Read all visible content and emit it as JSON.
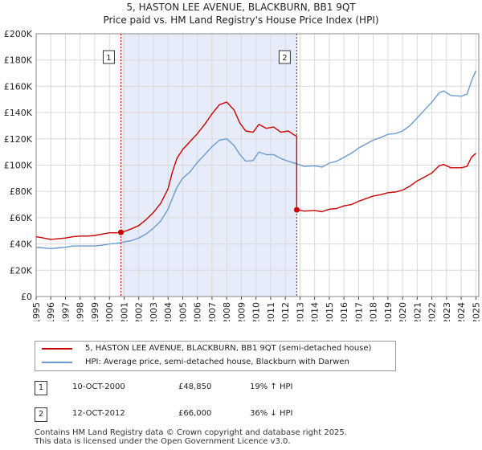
{
  "title_line1": "5, HASTON LEE AVENUE, BLACKBURN, BB1 9QT",
  "title_line2": "Price paid vs. HM Land Registry's House Price Index (HPI)",
  "colors": {
    "price": "#cc0000",
    "hpi": "#6b9bd2",
    "shade": "#e6ecf9",
    "grid": "#d9d9d9"
  },
  "chart_data": {
    "type": "line",
    "y_ticks": [
      "£0",
      "£20K",
      "£40K",
      "£60K",
      "£80K",
      "£100K",
      "£120K",
      "£140K",
      "£160K",
      "£180K",
      "£200K"
    ],
    "x_ticks": [
      "1995",
      "1996",
      "1997",
      "1998",
      "1999",
      "2000",
      "2001",
      "2002",
      "2003",
      "2004",
      "2005",
      "2006",
      "2007",
      "2008",
      "2009",
      "2010",
      "2011",
      "2012",
      "2013",
      "2014",
      "2015",
      "2016",
      "2017",
      "2018",
      "2019",
      "2020",
      "2021",
      "2022",
      "2023",
      "2024",
      "2025"
    ],
    "xlim": [
      1995,
      2025.2
    ],
    "ylim": [
      0,
      200000
    ],
    "shaded_range": [
      2000.78,
      2012.78
    ],
    "markers": [
      {
        "label": "1",
        "x": 2000.78,
        "y": 48850
      },
      {
        "label": "2",
        "x": 2012.78,
        "y": 66000
      }
    ],
    "series": [
      {
        "name": "5, HASTON LEE AVENUE, BLACKBURN, BB1 9QT (semi-detached house)",
        "color": "#cc0000",
        "points": [
          [
            1995.0,
            45500
          ],
          [
            1995.5,
            44500
          ],
          [
            1996.0,
            43500
          ],
          [
            1996.5,
            44000
          ],
          [
            1997.0,
            44500
          ],
          [
            1997.5,
            45500
          ],
          [
            1998.0,
            46000
          ],
          [
            1998.5,
            46000
          ],
          [
            1999.0,
            46500
          ],
          [
            1999.5,
            47500
          ],
          [
            2000.0,
            48500
          ],
          [
            2000.5,
            48500
          ],
          [
            2000.78,
            48850
          ],
          [
            2001.0,
            49500
          ],
          [
            2001.5,
            51500
          ],
          [
            2002.0,
            54000
          ],
          [
            2002.5,
            58500
          ],
          [
            2003.0,
            64000
          ],
          [
            2003.5,
            71000
          ],
          [
            2004.0,
            82000
          ],
          [
            2004.3,
            95000
          ],
          [
            2004.6,
            105000
          ],
          [
            2005.0,
            112000
          ],
          [
            2005.5,
            118000
          ],
          [
            2006.0,
            124000
          ],
          [
            2006.5,
            131000
          ],
          [
            2007.0,
            139000
          ],
          [
            2007.5,
            146000
          ],
          [
            2008.0,
            148000
          ],
          [
            2008.5,
            142000
          ],
          [
            2008.9,
            132000
          ],
          [
            2009.3,
            126000
          ],
          [
            2009.8,
            125000
          ],
          [
            2010.2,
            131000
          ],
          [
            2010.7,
            128000
          ],
          [
            2011.2,
            129000
          ],
          [
            2011.7,
            125000
          ],
          [
            2012.2,
            126000
          ],
          [
            2012.6,
            123000
          ],
          [
            2012.78,
            122000
          ],
          [
            2012.78,
            66000
          ],
          [
            2013.3,
            65000
          ],
          [
            2014.0,
            65500
          ],
          [
            2014.5,
            64500
          ],
          [
            2015.0,
            66500
          ],
          [
            2015.5,
            67000
          ],
          [
            2016.0,
            69000
          ],
          [
            2016.5,
            70000
          ],
          [
            2017.0,
            72500
          ],
          [
            2017.5,
            74500
          ],
          [
            2018.0,
            76500
          ],
          [
            2018.5,
            77500
          ],
          [
            2019.0,
            79000
          ],
          [
            2019.5,
            79500
          ],
          [
            2020.0,
            81000
          ],
          [
            2020.5,
            84000
          ],
          [
            2021.0,
            88000
          ],
          [
            2021.5,
            91000
          ],
          [
            2022.0,
            94000
          ],
          [
            2022.5,
            99500
          ],
          [
            2022.8,
            100500
          ],
          [
            2023.3,
            98000
          ],
          [
            2024.0,
            98000
          ],
          [
            2024.4,
            99000
          ],
          [
            2024.7,
            106000
          ],
          [
            2025.0,
            109000
          ]
        ]
      },
      {
        "name": "HPI: Average price, semi-detached house, Blackburn with Darwen",
        "color": "#6b9bd2",
        "points": [
          [
            1995.0,
            37500
          ],
          [
            1995.5,
            37000
          ],
          [
            1996.0,
            36500
          ],
          [
            1996.5,
            37000
          ],
          [
            1997.0,
            37500
          ],
          [
            1997.5,
            38500
          ],
          [
            1998.0,
            38500
          ],
          [
            1998.5,
            38500
          ],
          [
            1999.0,
            38500
          ],
          [
            1999.5,
            39000
          ],
          [
            2000.0,
            40000
          ],
          [
            2000.5,
            40500
          ],
          [
            2000.78,
            41000
          ],
          [
            2001.0,
            41500
          ],
          [
            2001.5,
            42500
          ],
          [
            2002.0,
            44500
          ],
          [
            2002.5,
            47500
          ],
          [
            2003.0,
            52000
          ],
          [
            2003.5,
            57500
          ],
          [
            2004.0,
            66500
          ],
          [
            2004.3,
            75000
          ],
          [
            2004.6,
            83000
          ],
          [
            2005.0,
            90000
          ],
          [
            2005.5,
            95000
          ],
          [
            2006.0,
            102000
          ],
          [
            2006.5,
            108000
          ],
          [
            2007.0,
            114000
          ],
          [
            2007.5,
            119000
          ],
          [
            2008.0,
            120000
          ],
          [
            2008.5,
            115000
          ],
          [
            2008.9,
            108000
          ],
          [
            2009.3,
            103000
          ],
          [
            2009.8,
            103500
          ],
          [
            2010.2,
            110000
          ],
          [
            2010.7,
            108000
          ],
          [
            2011.2,
            108000
          ],
          [
            2011.7,
            105000
          ],
          [
            2012.2,
            103000
          ],
          [
            2012.78,
            101000
          ],
          [
            2013.3,
            99000
          ],
          [
            2014.0,
            99500
          ],
          [
            2014.5,
            98500
          ],
          [
            2015.0,
            101500
          ],
          [
            2015.5,
            103000
          ],
          [
            2016.0,
            106000
          ],
          [
            2016.5,
            109000
          ],
          [
            2017.0,
            113000
          ],
          [
            2017.5,
            116000
          ],
          [
            2018.0,
            119000
          ],
          [
            2018.5,
            121000
          ],
          [
            2019.0,
            123500
          ],
          [
            2019.5,
            124000
          ],
          [
            2020.0,
            126000
          ],
          [
            2020.5,
            130000
          ],
          [
            2021.0,
            136000
          ],
          [
            2021.5,
            142000
          ],
          [
            2022.0,
            148000
          ],
          [
            2022.5,
            155000
          ],
          [
            2022.8,
            156500
          ],
          [
            2023.3,
            153000
          ],
          [
            2024.0,
            152500
          ],
          [
            2024.4,
            154000
          ],
          [
            2024.7,
            164000
          ],
          [
            2025.0,
            172000
          ]
        ]
      }
    ]
  },
  "legend": {
    "price_label": "5, HASTON LEE AVENUE, BLACKBURN, BB1 9QT (semi-detached house)",
    "hpi_label": "HPI: Average price, semi-detached house, Blackburn with Darwen"
  },
  "transactions": [
    {
      "num": "1",
      "date": "10-OCT-2000",
      "price": "£48,850",
      "hpi": "19% ↑ HPI"
    },
    {
      "num": "2",
      "date": "12-OCT-2012",
      "price": "£66,000",
      "hpi": "36% ↓ HPI"
    }
  ],
  "footer_line1": "Contains HM Land Registry data © Crown copyright and database right 2025.",
  "footer_line2": "This data is licensed under the Open Government Licence v3.0."
}
